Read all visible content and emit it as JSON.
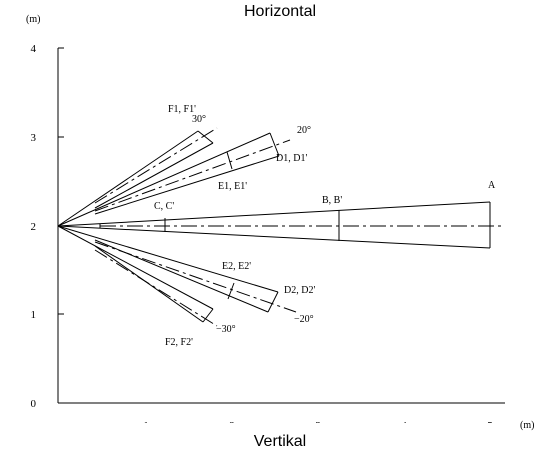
{
  "header": {
    "title": "Horizontal"
  },
  "footer": {
    "title": "Vertikal"
  },
  "axes": {
    "y_unit": "(m)",
    "x_unit": "(m)",
    "y_ticks": [
      "0",
      "1",
      "2",
      "3",
      "4"
    ],
    "x_ticks": [
      "1",
      "2",
      "3",
      "4",
      "5"
    ],
    "x_range": [
      0,
      5
    ],
    "y_range": [
      0,
      4
    ]
  },
  "labels": {
    "A": "A",
    "BB": "B, B'",
    "CC": "C, C'",
    "DD1": "D1, D1'",
    "EE1": "E1, E1'",
    "FF1": "F1, F1'",
    "angle_pos20": "20°",
    "angle_pos30": "30°",
    "EE2": "E2, E2'",
    "DD2": "D2, D2'",
    "FF2": "F2, F2'",
    "angle_neg20": "−20°",
    "angle_neg30": "−30°"
  },
  "colors": {
    "line": "#000000",
    "background": "#ffffff"
  }
}
